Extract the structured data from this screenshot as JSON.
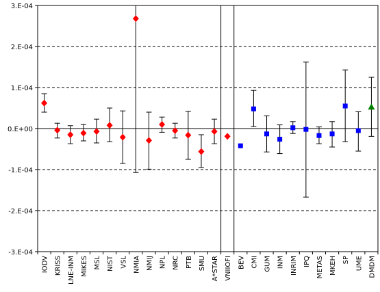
{
  "chart_data": {
    "type": "scatter",
    "categories": [
      "IODV",
      "KRISS",
      "LNE-INM",
      "MIKES",
      "MSL",
      "NIST",
      "VSL",
      "NMIA",
      "NMIJ",
      "NPL",
      "NRC",
      "PTB",
      "SMU",
      "A*STAR",
      "VNIIOFI",
      "BEV",
      "CMI",
      "GUM",
      "INM",
      "INRIM",
      "IPQ",
      "METAS",
      "MKEH",
      "SP",
      "UME",
      "DMDM"
    ],
    "ylim": [
      -0.0003,
      0.0003
    ],
    "y_ticks": [
      0.0003,
      0.0002,
      0.0001,
      0,
      -0.0001,
      -0.0002,
      -0.0003
    ],
    "y_tick_labels": [
      "3.E-04",
      "2.E-04",
      "1.E-04",
      "0.E+00",
      "-1.E-04",
      "-2.E-04",
      "-3.E-04"
    ],
    "grid": "horizontal dashed",
    "reference_line": 0,
    "divider_after": [
      "A*STAR",
      "VNIIOFI"
    ],
    "series": [
      {
        "marker": "diamond",
        "color": "#ff0000",
        "categories": [
          "IODV",
          "KRISS",
          "LNE-INM",
          "MIKES",
          "MSL",
          "NIST",
          "VSL",
          "NMIA",
          "NMIJ",
          "NPL",
          "NRC",
          "PTB",
          "SMU",
          "A*STAR",
          "VNIIOFI"
        ],
        "values": [
          6.2e-05,
          -4e-06,
          -1.5e-05,
          -1.1e-05,
          -7e-06,
          8e-06,
          -2.1e-05,
          0.000268,
          -2.9e-05,
          1e-05,
          -5e-06,
          -1.6e-05,
          -5.6e-05,
          -7e-06,
          -1.9e-05
        ],
        "err_low": [
          4e-05,
          -2.3e-05,
          -3.7e-05,
          -3e-05,
          -3.5e-05,
          -3.2e-05,
          -8.5e-05,
          -0.000107,
          -9.9e-05,
          -9e-06,
          -2.3e-05,
          -7.5e-05,
          -9.5e-05,
          -3.7e-05,
          -1.9e-05
        ],
        "err_high": [
          8.5e-05,
          1.3e-05,
          7e-06,
          1e-05,
          2.3e-05,
          5e-05,
          4.3e-05,
          0.0003,
          4e-05,
          2.8e-05,
          1.3e-05,
          4.2e-05,
          -1.5e-05,
          2.3e-05,
          -1.9e-05
        ]
      },
      {
        "marker": "square",
        "color": "#0000ff",
        "categories": [
          "BEV",
          "CMI",
          "GUM",
          "INM",
          "INRIM",
          "IPQ",
          "METAS",
          "MKEH",
          "SP",
          "UME"
        ],
        "values": [
          -4.2e-05,
          4.8e-05,
          -1.3e-05,
          -2.6e-05,
          2e-06,
          -2e-06,
          -1.7e-05,
          -1.3e-05,
          5.5e-05,
          -5e-06
        ],
        "err_low": [
          -4.2e-05,
          5e-06,
          -5.7e-05,
          -6.1e-05,
          -1.2e-05,
          -0.000167,
          -3.7e-05,
          -4.5e-05,
          -3.2e-05,
          -5.5e-05
        ],
        "err_high": [
          -4.2e-05,
          9.3e-05,
          3.1e-05,
          9e-06,
          1.7e-05,
          0.000162,
          4e-06,
          1.7e-05,
          0.000143,
          4.1e-05
        ]
      },
      {
        "marker": "triangle",
        "color": "#008000",
        "categories": [
          "DMDM"
        ],
        "values": [
          5.3e-05
        ],
        "err_low": [
          -1.9e-05
        ],
        "err_high": [
          0.000125
        ]
      }
    ]
  }
}
